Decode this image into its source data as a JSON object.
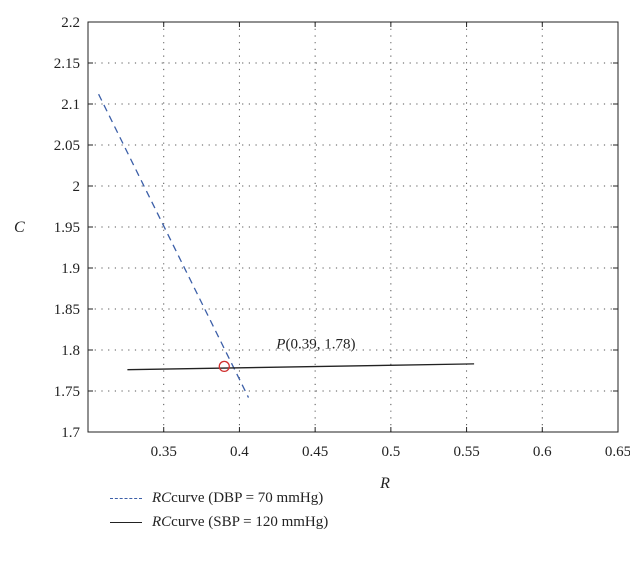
{
  "chart_data": {
    "type": "line",
    "xlabel": "R",
    "ylabel": "C",
    "xlim": [
      0.3,
      0.65
    ],
    "ylim": [
      1.7,
      2.2
    ],
    "xticks": [
      "0.35",
      "0.4",
      "0.45",
      "0.5",
      "0.55",
      "0.6",
      "0.65"
    ],
    "yticks": [
      "1.7",
      "1.75",
      "1.8",
      "1.85",
      "1.9",
      "1.95",
      "2",
      "2.05",
      "2.1",
      "2.15",
      "2.2"
    ],
    "grid": true,
    "grid_style": "dotted",
    "series": [
      {
        "name_italic": "RC",
        "name_rest": " curve (DBP = 70 mmHg)",
        "style": "dashed",
        "color": "#3c5fa8",
        "x": [
          0.307,
          0.406
        ],
        "y": [
          2.112,
          1.742
        ]
      },
      {
        "name_italic": "RC",
        "name_rest": " curve (SBP = 120 mmHg)",
        "style": "solid",
        "color": "#222222",
        "x": [
          0.326,
          0.555
        ],
        "y": [
          1.776,
          1.783
        ]
      }
    ],
    "annotations": [
      {
        "text_italic": "P",
        "text_rest": "(0.39, 1.78)",
        "x": 0.39,
        "y": 1.78,
        "marker": "circle",
        "marker_color": "#d0302f"
      }
    ],
    "legend_placement": "bottom-left"
  }
}
